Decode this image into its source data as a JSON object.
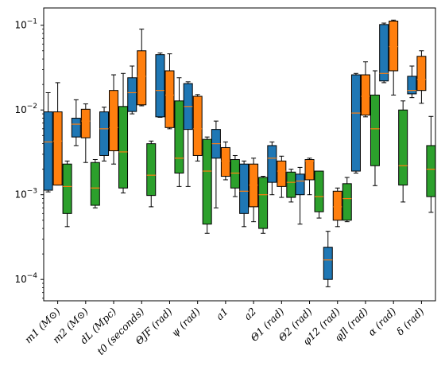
{
  "chart_data": {
    "type": "box",
    "scale": "log",
    "ylim": [
      5.6e-05,
      0.16
    ],
    "grid": false,
    "categories": [
      "m1 (M⊙)",
      "m2 (M⊙)",
      "dL (Mpc)",
      "t0 (seconds)",
      "ΘJF (rad)",
      "ψ (rad)",
      "a1",
      "a2",
      "Θ1 (rad)",
      "Θ2 (rad)",
      "φ12 (rad)",
      "φJl (rad)",
      "α (rad)",
      "δ (rad)"
    ],
    "y_ticks": [
      {
        "value": 0.0001,
        "base": "10",
        "exp": "−4"
      },
      {
        "value": 0.001,
        "base": "10",
        "exp": "−3"
      },
      {
        "value": 0.01,
        "base": "10",
        "exp": "−2"
      },
      {
        "value": 0.1,
        "base": "10",
        "exp": "−1"
      }
    ],
    "series": [
      {
        "color": "#1f77b4",
        "boxes": [
          {
            "wlo": 0.00108,
            "q1": 0.00113,
            "med": 0.0042,
            "q3": 0.0095,
            "whi": 0.016
          },
          {
            "wlo": 0.0038,
            "q1": 0.0048,
            "med": 0.0068,
            "q3": 0.008,
            "whi": 0.0132
          },
          {
            "wlo": 0.0025,
            "q1": 0.0029,
            "med": 0.006,
            "q3": 0.0095,
            "whi": 0.0108
          },
          {
            "wlo": 0.009,
            "q1": 0.0096,
            "med": 0.016,
            "q3": 0.024,
            "whi": 0.033
          },
          {
            "wlo": 0.0082,
            "q1": 0.0083,
            "med": 0.017,
            "q3": 0.045,
            "whi": 0.047
          },
          {
            "wlo": 0.00125,
            "q1": 0.0059,
            "med": 0.011,
            "q3": 0.0205,
            "whi": 0.0215
          },
          {
            "wlo": 0.0007,
            "q1": 0.0027,
            "med": 0.004,
            "q3": 0.0059,
            "whi": 0.0074
          },
          {
            "wlo": 0.00042,
            "q1": 0.0006,
            "med": 0.0011,
            "q3": 0.0023,
            "whi": 0.0025
          },
          {
            "wlo": 0.001,
            "q1": 0.0014,
            "med": 0.0027,
            "q3": 0.0038,
            "whi": 0.0042
          },
          {
            "wlo": 0.00045,
            "q1": 0.001,
            "med": 0.00145,
            "q3": 0.00175,
            "whi": 0.0021
          },
          {
            "wlo": 8.2e-05,
            "q1": 0.0001,
            "med": 0.00017,
            "q3": 0.00024,
            "whi": 0.00037
          },
          {
            "wlo": 0.0018,
            "q1": 0.0019,
            "med": 0.0092,
            "q3": 0.026,
            "whi": 0.027
          },
          {
            "wlo": 0.021,
            "q1": 0.022,
            "med": 0.027,
            "q3": 0.102,
            "whi": 0.106
          },
          {
            "wlo": 0.014,
            "q1": 0.0155,
            "med": 0.017,
            "q3": 0.025,
            "whi": 0.033
          }
        ]
      },
      {
        "color": "#ff7f0e",
        "boxes": [
          {
            "wlo": 0.0013,
            "q1": 0.0013,
            "med": 0.0043,
            "q3": 0.0095,
            "whi": 0.021
          },
          {
            "wlo": 0.0024,
            "q1": 0.0047,
            "med": 0.0074,
            "q3": 0.0102,
            "whi": 0.0118
          },
          {
            "wlo": 0.0023,
            "q1": 0.0033,
            "med": 0.0062,
            "q3": 0.017,
            "whi": 0.026
          },
          {
            "wlo": 0.0112,
            "q1": 0.0115,
            "med": 0.025,
            "q3": 0.05,
            "whi": 0.09
          },
          {
            "wlo": 0.006,
            "q1": 0.0062,
            "med": 0.015,
            "q3": 0.029,
            "whi": 0.046
          },
          {
            "wlo": 0.0025,
            "q1": 0.0029,
            "med": 0.006,
            "q3": 0.0145,
            "whi": 0.0152
          },
          {
            "wlo": 0.0015,
            "q1": 0.00165,
            "med": 0.0025,
            "q3": 0.0036,
            "whi": 0.0042
          },
          {
            "wlo": 0.00048,
            "q1": 0.00072,
            "med": 0.0013,
            "q3": 0.0023,
            "whi": 0.0027
          },
          {
            "wlo": 0.00093,
            "q1": 0.00125,
            "med": 0.0019,
            "q3": 0.0025,
            "whi": 0.00285
          },
          {
            "wlo": 0.001,
            "q1": 0.0015,
            "med": 0.0025,
            "q3": 0.0026,
            "whi": 0.0027
          },
          {
            "wlo": 0.00042,
            "q1": 0.0005,
            "med": 0.00072,
            "q3": 0.0011,
            "whi": 0.0012
          },
          {
            "wlo": 0.0083,
            "q1": 0.0087,
            "med": 0.0145,
            "q3": 0.026,
            "whi": 0.037
          },
          {
            "wlo": 0.015,
            "q1": 0.029,
            "med": 0.056,
            "q3": 0.112,
            "whi": 0.115
          },
          {
            "wlo": 0.012,
            "q1": 0.017,
            "med": 0.023,
            "q3": 0.043,
            "whi": 0.05
          }
        ]
      },
      {
        "color": "#2ca02c",
        "boxes": [
          {
            "wlo": 0.00042,
            "q1": 0.0006,
            "med": 0.00125,
            "q3": 0.0023,
            "whi": 0.0025
          },
          {
            "wlo": 0.0007,
            "q1": 0.00075,
            "med": 0.0012,
            "q3": 0.0024,
            "whi": 0.0026
          },
          {
            "wlo": 0.00105,
            "q1": 0.0012,
            "med": 0.0032,
            "q3": 0.011,
            "whi": 0.027
          },
          {
            "wlo": 0.00072,
            "q1": 0.00098,
            "med": 0.0017,
            "q3": 0.004,
            "whi": 0.0043
          },
          {
            "wlo": 0.00125,
            "q1": 0.0018,
            "med": 0.0027,
            "q3": 0.0128,
            "whi": 0.024
          },
          {
            "wlo": 0.00035,
            "q1": 0.00045,
            "med": 0.0019,
            "q3": 0.0045,
            "whi": 0.0048
          },
          {
            "wlo": 0.00095,
            "q1": 0.0012,
            "med": 0.0018,
            "q3": 0.0026,
            "whi": 0.0029
          },
          {
            "wlo": 0.00035,
            "q1": 0.0004,
            "med": 0.001,
            "q3": 0.0016,
            "whi": 0.00165
          },
          {
            "wlo": 0.00082,
            "q1": 0.00093,
            "med": 0.0014,
            "q3": 0.00185,
            "whi": 0.002
          },
          {
            "wlo": 0.00053,
            "q1": 0.00063,
            "med": 0.00095,
            "q3": 0.0019,
            "whi": 0.0019
          },
          {
            "wlo": 0.00048,
            "q1": 0.0005,
            "med": 0.0009,
            "q3": 0.00135,
            "whi": 0.0016
          },
          {
            "wlo": 0.00128,
            "q1": 0.0022,
            "med": 0.006,
            "q3": 0.015,
            "whi": 0.029
          },
          {
            "wlo": 0.00082,
            "q1": 0.0013,
            "med": 0.0022,
            "q3": 0.01,
            "whi": 0.0128
          },
          {
            "wlo": 0.00062,
            "q1": 0.00095,
            "med": 0.002,
            "q3": 0.0038,
            "whi": 0.0084
          }
        ]
      }
    ]
  }
}
